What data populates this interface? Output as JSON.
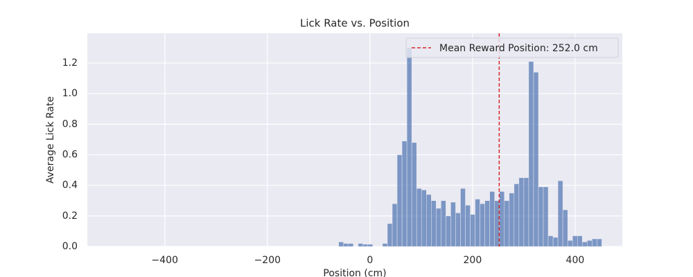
{
  "chart_data": {
    "type": "histogram",
    "title": "Lick Rate vs. Position",
    "x_label": "Position (cm)",
    "y_label": "Average Lick Rate",
    "bins": [
      -61,
      -51.5,
      -42,
      -32.5,
      -23,
      -13.5,
      -4,
      5.5,
      15,
      24.5,
      34,
      43.5,
      53,
      62.5,
      72,
      81.5,
      91,
      100.5,
      110,
      119.5,
      129,
      138.5,
      148,
      157.5,
      167,
      176.5,
      186,
      195.5,
      205,
      214.5,
      224,
      233.5,
      243,
      252.5,
      262,
      271.5,
      281,
      290.5,
      300,
      309.5,
      319,
      328.5,
      338,
      347.5,
      357,
      366.5,
      376,
      385.5,
      395,
      404.5,
      414,
      423.5,
      433,
      442.5,
      452
    ],
    "values": [
      0.03,
      0.02,
      0.02,
      0,
      0.02,
      0.015,
      0.015,
      0,
      0,
      0.02,
      0.15,
      0.28,
      0.6,
      0.69,
      1.3,
      0.68,
      0.38,
      0.37,
      0.34,
      0.3,
      0.25,
      0.3,
      0.2,
      0.29,
      0.22,
      0.38,
      0.27,
      0.21,
      0.31,
      0.28,
      0.3,
      0.36,
      0.3,
      0.36,
      0.3,
      0.35,
      0.41,
      0.45,
      0.45,
      1.21,
      1.14,
      0.39,
      0.39,
      0.07,
      0.06,
      0.43,
      0.24,
      0.04,
      0.07,
      0.07,
      0.03,
      0.04,
      0.05,
      0.05
    ],
    "color": "#4c72b0",
    "xlim": [
      -551,
      492
    ],
    "ylim": [
      0,
      1.395
    ],
    "xticks": [
      {
        "value": -400,
        "label": "−400"
      },
      {
        "value": -200,
        "label": "−200"
      },
      0,
      200,
      400
    ],
    "yticks": [
      {
        "value": 0,
        "label": "0.0"
      },
      0.2,
      0.4,
      0.6,
      0.8,
      {
        "value": 1,
        "label": "1.0"
      },
      1.2
    ],
    "grid": true,
    "reference_line": {
      "value": 252,
      "label": "Mean Reward Position: 252.0 cm",
      "color": "#d62728"
    },
    "legend": "upper right"
  }
}
